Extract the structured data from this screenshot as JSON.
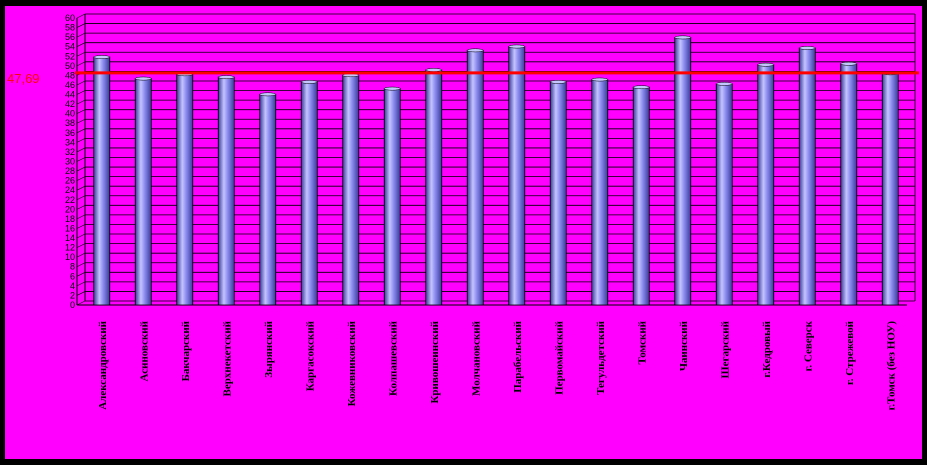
{
  "chart_data": {
    "type": "bar",
    "categories": [
      "Александровский",
      "Асиновский",
      "Бакчарский",
      "Верхнекетский",
      "Зырянский",
      "Каргасокский",
      "Кожевниковский",
      "Колпашевский",
      "Кривошеинский",
      "Молчановский",
      "Парабельский",
      "Первомайский",
      "Тегульдетский",
      "Томский",
      "Чаинский",
      "Шегарский",
      "г.Кедровый",
      "г. Северск",
      "г. Стрежевой",
      "г.Томск (без НОУ)"
    ],
    "values": [
      51,
      46.5,
      47.4,
      46.8,
      43.2,
      45.8,
      47.2,
      44.4,
      48.3,
      52.4,
      53.2,
      45.8,
      46.3,
      44.7,
      55.1,
      45.4,
      49.4,
      52.9,
      49.6,
      47.6
    ],
    "reference_line": {
      "value": 47.69,
      "label": "47,69",
      "color": "#ff0000"
    },
    "ylim": [
      0,
      60
    ],
    "ytick_step": 2,
    "grid": true,
    "title": "",
    "xlabel": "",
    "ylabel": "",
    "colors": {
      "background": "#ff00ff",
      "bar": "#8080ff",
      "bar_dark": "#3a3a9a",
      "bar_light": "#c4c4ff",
      "grid": "#000000"
    }
  }
}
